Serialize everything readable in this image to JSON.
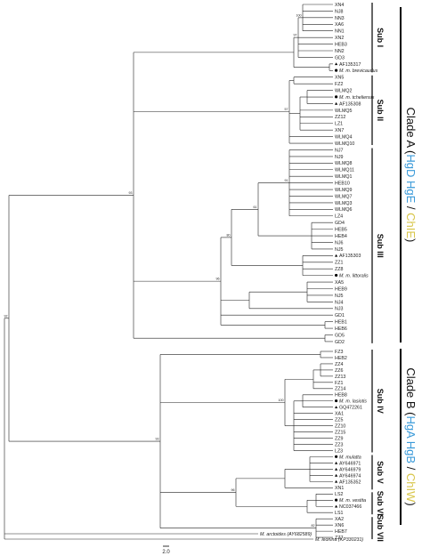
{
  "tips": [
    {
      "id": 1,
      "label": "XN4"
    },
    {
      "id": 2,
      "label": "NJ8"
    },
    {
      "id": 3,
      "label": "NN3"
    },
    {
      "id": 4,
      "label": "XA6"
    },
    {
      "id": 5,
      "label": "NN1"
    },
    {
      "id": 6,
      "label": "XN2"
    },
    {
      "id": 7,
      "label": "HEB3"
    },
    {
      "id": 8,
      "label": "NN2"
    },
    {
      "id": 9,
      "label": "GD3"
    },
    {
      "id": 10,
      "label": "AF135317",
      "marker": "triangle"
    },
    {
      "id": 11,
      "label": "M. m. brevicaudus",
      "marker": "circle",
      "italic": true
    },
    {
      "id": 12,
      "label": "XN5"
    },
    {
      "id": 13,
      "label": "FZ2"
    },
    {
      "id": 14,
      "label": "WLMQ2"
    },
    {
      "id": 15,
      "label": "M. m. tcheliensis",
      "marker": "circle",
      "italic": true
    },
    {
      "id": 16,
      "label": "AF135308",
      "marker": "triangle"
    },
    {
      "id": 17,
      "label": "WLMQ5"
    },
    {
      "id": 18,
      "label": "ZZ12"
    },
    {
      "id": 19,
      "label": "LZ1"
    },
    {
      "id": 20,
      "label": "XN7"
    },
    {
      "id": 21,
      "label": "WLMQ4"
    },
    {
      "id": 22,
      "label": "WLMQ10"
    },
    {
      "id": 23,
      "label": "NJ7"
    },
    {
      "id": 24,
      "label": "NJ9"
    },
    {
      "id": 25,
      "label": "WLMQ8"
    },
    {
      "id": 26,
      "label": "WLMQ11"
    },
    {
      "id": 27,
      "label": "WLMQ1"
    },
    {
      "id": 28,
      "label": "HEB10"
    },
    {
      "id": 29,
      "label": "WLMQ9"
    },
    {
      "id": 30,
      "label": "WLMQ7"
    },
    {
      "id": 31,
      "label": "WLMQ3"
    },
    {
      "id": 32,
      "label": "WLMQ6"
    },
    {
      "id": 33,
      "label": "LZ4"
    },
    {
      "id": 34,
      "label": "GD4"
    },
    {
      "id": 35,
      "label": "HEB5"
    },
    {
      "id": 36,
      "label": "HEB4"
    },
    {
      "id": 37,
      "label": "NJ6"
    },
    {
      "id": 38,
      "label": "NJ5"
    },
    {
      "id": 39,
      "label": "AF135303",
      "marker": "triangle"
    },
    {
      "id": 40,
      "label": "ZZ1"
    },
    {
      "id": 41,
      "label": "ZZ8"
    },
    {
      "id": 42,
      "label": "M. m. littoralis",
      "marker": "circle",
      "italic": true
    },
    {
      "id": 43,
      "label": "XA5"
    },
    {
      "id": 44,
      "label": "HEB9"
    },
    {
      "id": 45,
      "label": "NJ5"
    },
    {
      "id": 46,
      "label": "NJ4"
    },
    {
      "id": 47,
      "label": "NJ3"
    },
    {
      "id": 48,
      "label": "GD1"
    },
    {
      "id": 49,
      "label": "HEB1"
    },
    {
      "id": 50,
      "label": "HEB6"
    },
    {
      "id": 51,
      "label": "GD5"
    },
    {
      "id": 52,
      "label": "GD2"
    },
    {
      "id": 53,
      "label": "FZ3"
    },
    {
      "id": 54,
      "label": "HEB2"
    },
    {
      "id": 55,
      "label": "ZZ4"
    },
    {
      "id": 56,
      "label": "ZZ6"
    },
    {
      "id": 57,
      "label": "ZZ13"
    },
    {
      "id": 58,
      "label": "FZ1"
    },
    {
      "id": 59,
      "label": "ZZ14"
    },
    {
      "id": 60,
      "label": "HEB8"
    },
    {
      "id": 61,
      "label": "M. m. lasiotis",
      "marker": "circle",
      "italic": true
    },
    {
      "id": 62,
      "label": "GQ472261",
      "marker": "triangle"
    },
    {
      "id": 63,
      "label": "XA1"
    },
    {
      "id": 64,
      "label": "ZZ5"
    },
    {
      "id": 65,
      "label": "ZZ10"
    },
    {
      "id": 66,
      "label": "ZZ15"
    },
    {
      "id": 67,
      "label": "ZZ9"
    },
    {
      "id": 68,
      "label": "ZZ3"
    },
    {
      "id": 69,
      "label": "LZ3"
    },
    {
      "id": 70,
      "label": "M. mulatta",
      "marker": "circle",
      "italic": true
    },
    {
      "id": 71,
      "label": "AY646971",
      "marker": "triangle"
    },
    {
      "id": 72,
      "label": "AY646979",
      "marker": "triangle"
    },
    {
      "id": 73,
      "label": "AY646974",
      "marker": "triangle"
    },
    {
      "id": 74,
      "label": "AF135352",
      "marker": "triangle"
    },
    {
      "id": 75,
      "label": "XN1"
    },
    {
      "id": 76,
      "label": "LS2"
    },
    {
      "id": 77,
      "label": "M. m. vestita",
      "marker": "circle",
      "italic": true
    },
    {
      "id": 78,
      "label": "NC037466",
      "marker": "triangle"
    },
    {
      "id": 79,
      "label": "LS1"
    },
    {
      "id": 80,
      "label": "XA2"
    },
    {
      "id": 81,
      "label": "XN6"
    },
    {
      "id": 82,
      "label": "HEB7"
    },
    {
      "id": 83,
      "label": "ZZ7"
    },
    {
      "id": 84,
      "label": "M. arctoides (AY682589)",
      "italic": true
    },
    {
      "id": 85,
      "label": "M. leonina (KP330231)",
      "italic": true
    }
  ],
  "support_values": [
    "100",
    "97",
    "67",
    "57",
    "93",
    "91",
    "61",
    "80",
    "96",
    "92",
    "100",
    "93",
    "96",
    "82",
    "93"
  ],
  "subclades": [
    "Sub I",
    "Sub II",
    "Sub III",
    "Sub IV",
    "Sub V",
    "Sub VI",
    "Sub VII"
  ],
  "clade_a": {
    "prefix": "Clade A (",
    "parts": [
      {
        "text": "HgD",
        "color": "#3a9ad9"
      },
      {
        "text": " HgE",
        "color": "#3a9ad9"
      },
      {
        "text": " / ",
        "color": "#111111"
      },
      {
        "text": "ChIE",
        "color": "#d8c64a"
      }
    ],
    "suffix": ")"
  },
  "clade_b": {
    "prefix": "Clade B (",
    "parts": [
      {
        "text": "HgA",
        "color": "#3a9ad9"
      },
      {
        "text": " HgB",
        "color": "#3a9ad9"
      },
      {
        "text": " / ",
        "color": "#111111"
      },
      {
        "text": "ChIW",
        "color": "#d8c64a"
      }
    ],
    "suffix": ")"
  },
  "scale_label": "2.0"
}
